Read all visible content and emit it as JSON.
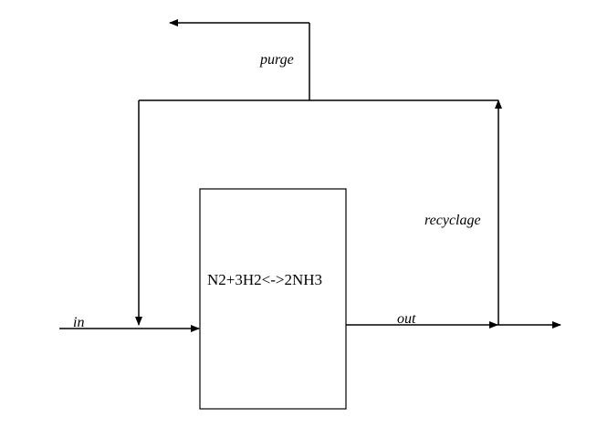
{
  "reactor": {
    "equation": "N2+3H2<->2NH3"
  },
  "streams": {
    "in": "in",
    "out": "out",
    "purge": "purge",
    "recycle": "recyclage"
  }
}
